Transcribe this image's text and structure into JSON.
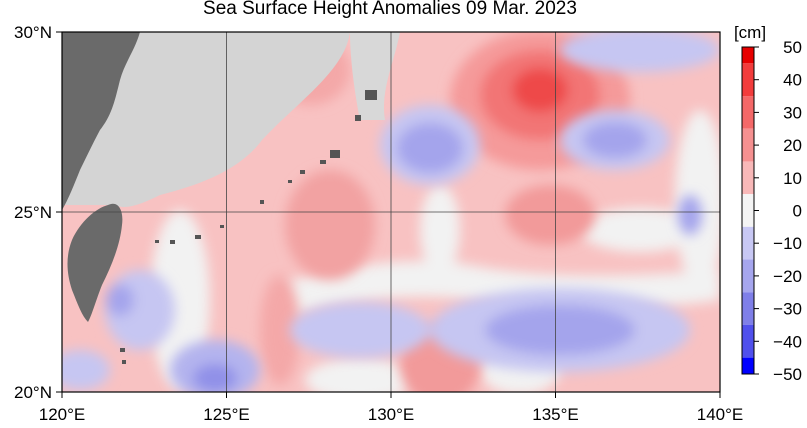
{
  "title": "Sea Surface Height Anomalies  09 Mar. 2023",
  "map": {
    "lat_labels": [
      "30°N",
      "25°N",
      "20°N"
    ],
    "lon_labels": [
      "120°E",
      "125°E",
      "130°E",
      "135°E",
      "140°E"
    ],
    "extent": {
      "lon": [
        120,
        140
      ],
      "lat": [
        20,
        30
      ]
    },
    "land_color": "#6a6a6a",
    "land_region_color": "#d4d4d4",
    "neutral_color": "#f4f4f4"
  },
  "colorbar": {
    "unit": "[cm]",
    "tick_labels": [
      "50",
      "40",
      "30",
      "20",
      "10",
      "0",
      "−10",
      "−20",
      "−30",
      "−40",
      "−50"
    ],
    "colors": [
      "#e60000",
      "#f23c3c",
      "#f46868",
      "#f59090",
      "#f8b8b8",
      "#f4f4f4",
      "#c8c8f4",
      "#a6a6ee",
      "#7f7fe8",
      "#5050ec",
      "#0000ff"
    ]
  }
}
